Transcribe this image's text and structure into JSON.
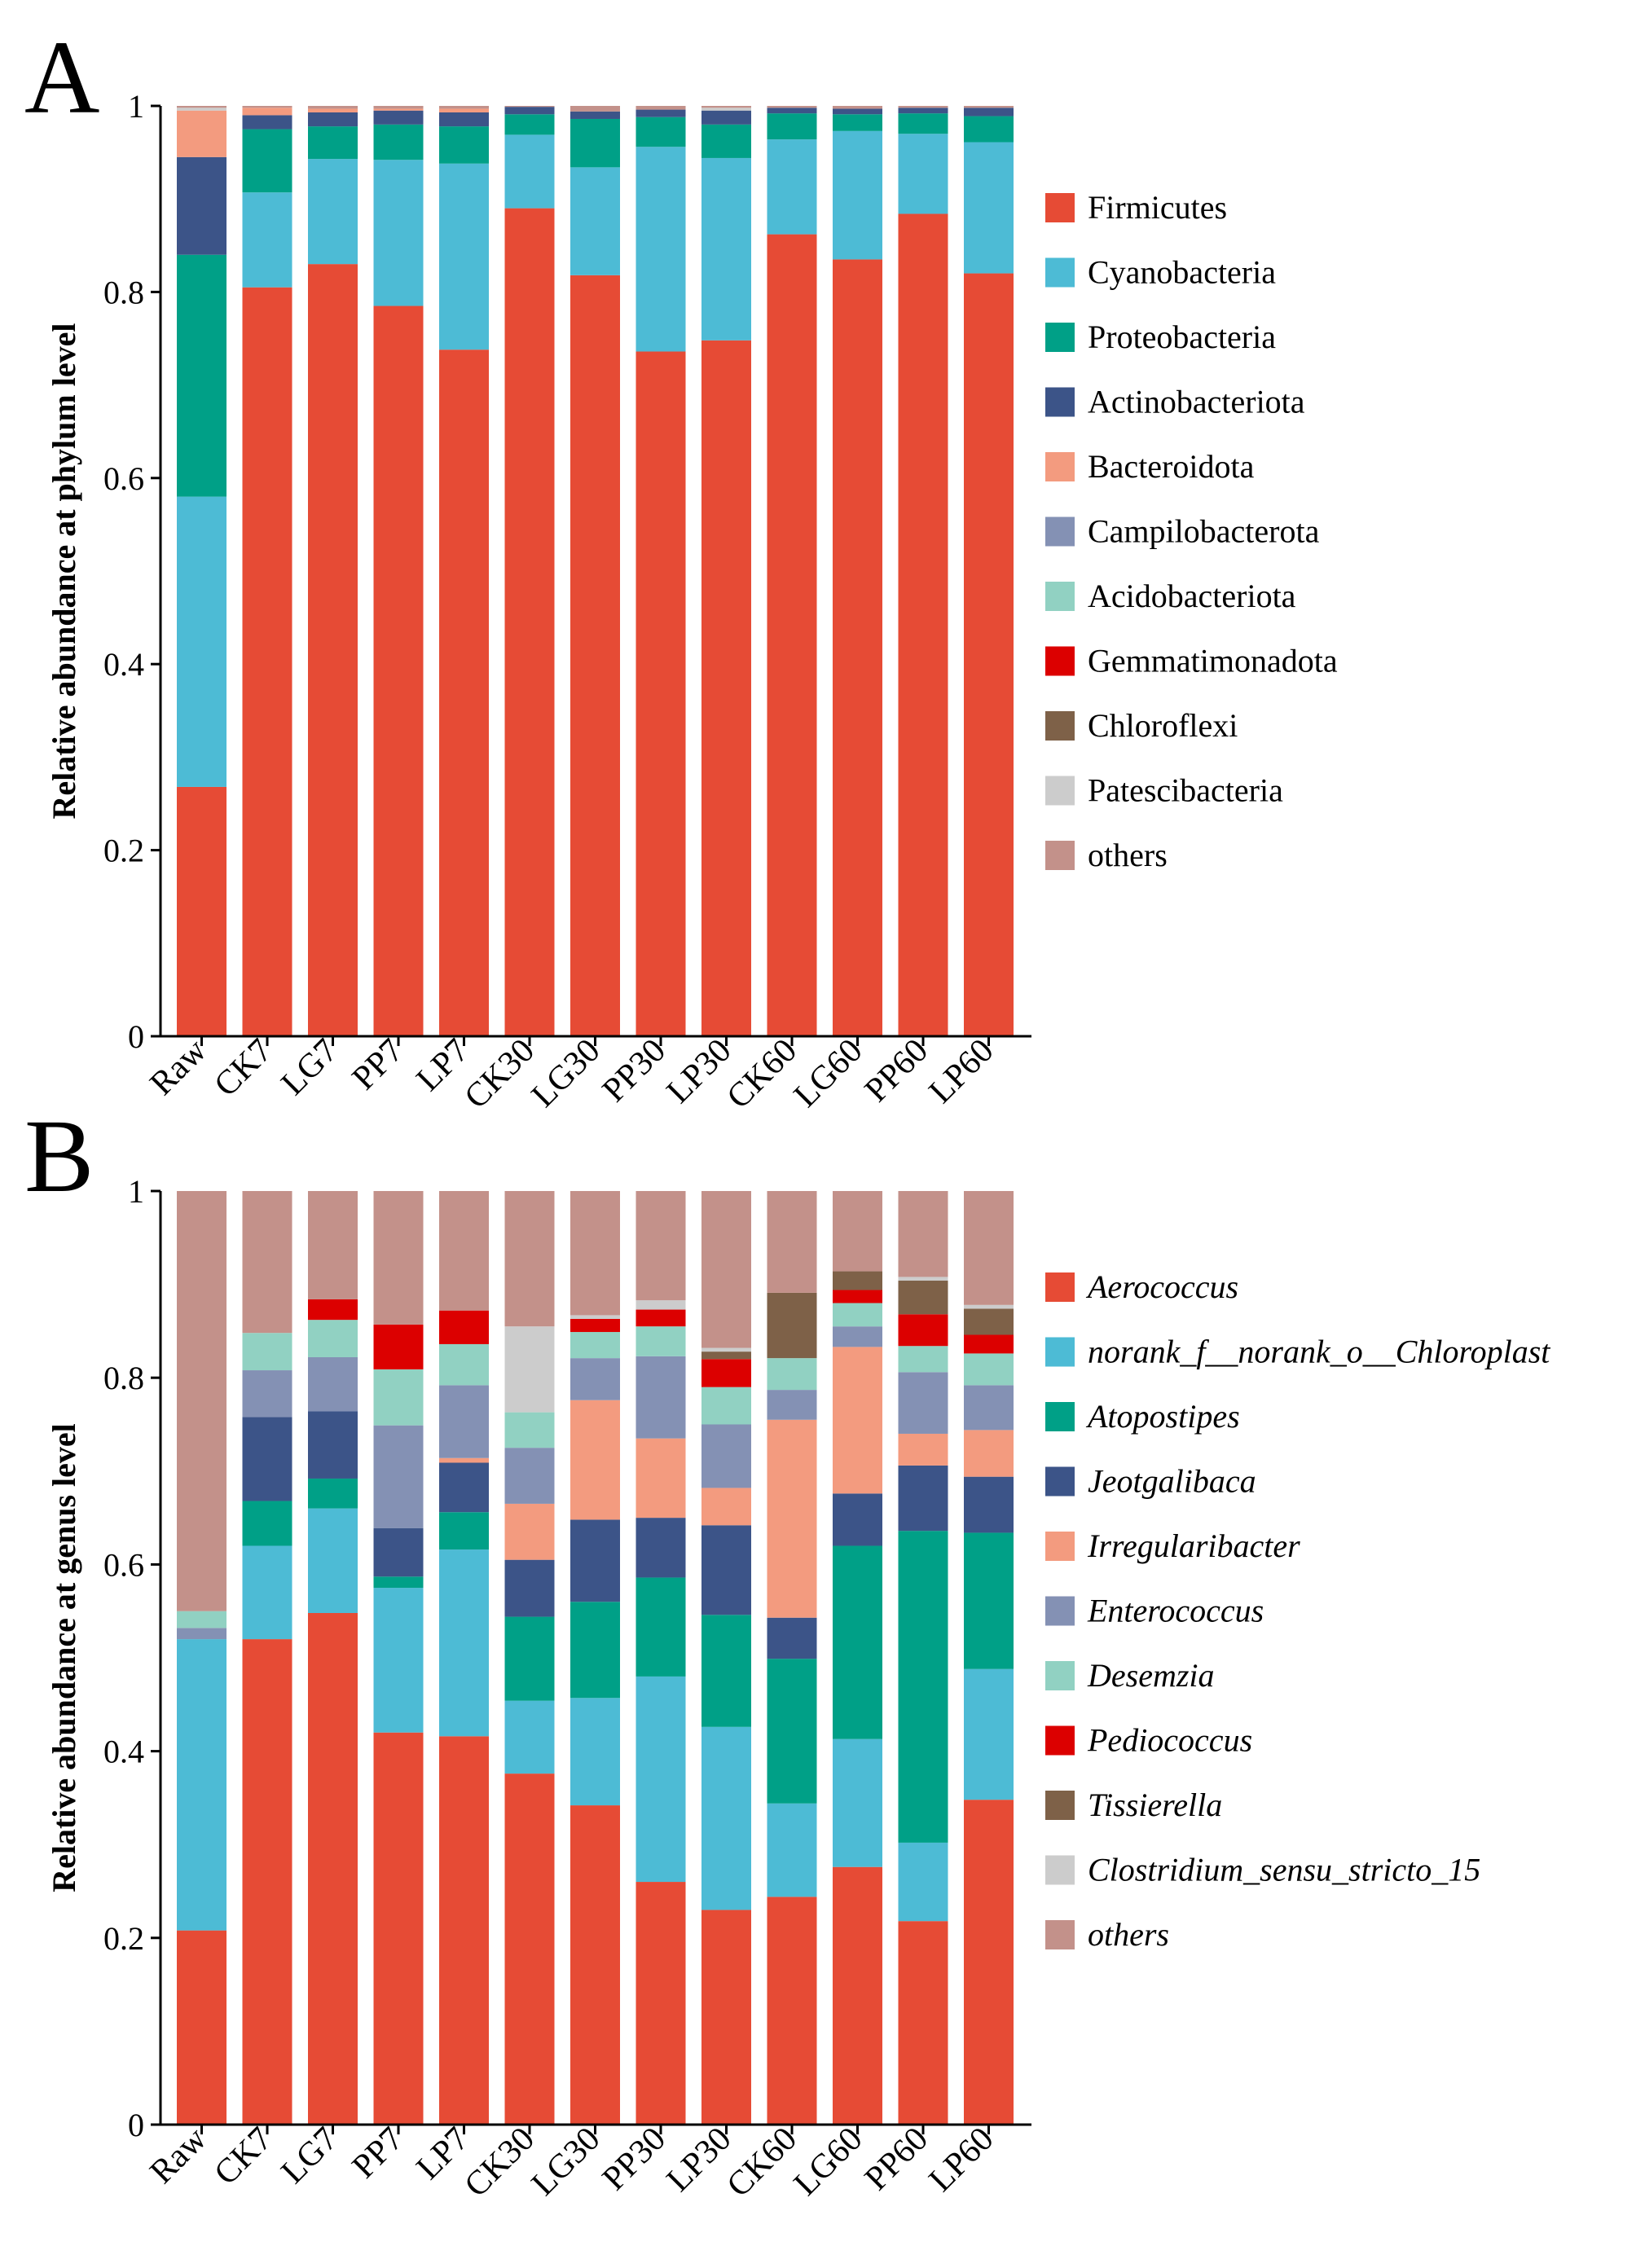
{
  "chart_data": [
    {
      "panel": "A",
      "type": "bar",
      "stacked": true,
      "ylabel": "Relative abundance at phylum level",
      "ylim": [
        0,
        1
      ],
      "yticks": [
        "0",
        "0.2",
        "0.4",
        "0.6",
        "0.8",
        "1"
      ],
      "legend_italic": false,
      "categories": [
        "Raw",
        "CK7",
        "LG7",
        "PP7",
        "LP7",
        "CK30",
        "LG30",
        "PP30",
        "LP30",
        "CK60",
        "LG60",
        "PP60",
        "LP60"
      ],
      "series": [
        {
          "name": "Firmicutes",
          "color": "#e64b35",
          "values": [
            0.268,
            0.805,
            0.83,
            0.785,
            0.738,
            0.89,
            0.818,
            0.736,
            0.748,
            0.862,
            0.835,
            0.884,
            0.82
          ]
        },
        {
          "name": "Cyanobacteria",
          "color": "#4dbbd5",
          "values": [
            0.312,
            0.102,
            0.113,
            0.157,
            0.2,
            0.079,
            0.116,
            0.22,
            0.196,
            0.102,
            0.138,
            0.086,
            0.141
          ]
        },
        {
          "name": "Proteobacteria",
          "color": "#00a087",
          "values": [
            0.26,
            0.068,
            0.035,
            0.038,
            0.04,
            0.022,
            0.052,
            0.032,
            0.036,
            0.028,
            0.018,
            0.022,
            0.028
          ]
        },
        {
          "name": "Actinobacteriota",
          "color": "#3c5488",
          "values": [
            0.105,
            0.015,
            0.015,
            0.015,
            0.015,
            0.008,
            0.008,
            0.008,
            0.015,
            0.006,
            0.006,
            0.006,
            0.009
          ]
        },
        {
          "name": "Bacteroidota",
          "color": "#f39b7f",
          "values": [
            0.05,
            0.008,
            0.004,
            0.002,
            0.004,
            0.0,
            0.0,
            0.0,
            0.0,
            0.0,
            0.0,
            0.0,
            0.0
          ]
        },
        {
          "name": "Campilobacterota",
          "color": "#8491b4",
          "values": [
            0.0,
            0.0,
            0.0,
            0.0,
            0.0,
            0.0,
            0.0,
            0.0,
            0.0,
            0.0,
            0.0,
            0.0,
            0.0
          ]
        },
        {
          "name": "Acidobacteriota",
          "color": "#91d1c2",
          "values": [
            0.0,
            0.0,
            0.0,
            0.0,
            0.0,
            0.0,
            0.0,
            0.0,
            0.0,
            0.0,
            0.0,
            0.0,
            0.0
          ]
        },
        {
          "name": "Gemmatimonadota",
          "color": "#dc0000",
          "values": [
            0.0,
            0.0,
            0.0,
            0.0,
            0.0,
            0.0,
            0.0,
            0.0,
            0.0,
            0.0,
            0.0,
            0.0,
            0.0
          ]
        },
        {
          "name": "Chloroflexi",
          "color": "#7e6148",
          "values": [
            0.0,
            0.0,
            0.0,
            0.0,
            0.0,
            0.0,
            0.0,
            0.0,
            0.0,
            0.0,
            0.0,
            0.0,
            0.0
          ]
        },
        {
          "name": "Patescibacteria",
          "color": "#cccccc",
          "values": [
            0.003,
            0.0,
            0.0,
            0.0,
            0.0,
            0.0,
            0.0,
            0.0,
            0.003,
            0.0,
            0.0,
            0.0,
            0.0
          ]
        },
        {
          "name": "others",
          "color": "#c3918a",
          "values": [
            0.002,
            0.002,
            0.003,
            0.003,
            0.003,
            0.001,
            0.006,
            0.004,
            0.002,
            0.002,
            0.003,
            0.002,
            0.002
          ]
        }
      ]
    },
    {
      "panel": "B",
      "type": "bar",
      "stacked": true,
      "ylabel": "Relative abundance at genus level",
      "ylim": [
        0,
        1
      ],
      "yticks": [
        "0",
        "0.2",
        "0.4",
        "0.6",
        "0.8",
        "1"
      ],
      "legend_italic": true,
      "categories": [
        "Raw",
        "CK7",
        "LG7",
        "PP7",
        "LP7",
        "CK30",
        "LG30",
        "PP30",
        "LP30",
        "CK60",
        "LG60",
        "PP60",
        "LP60"
      ],
      "series": [
        {
          "name": "Aerococcus",
          "color": "#e64b35",
          "values": [
            0.208,
            0.52,
            0.548,
            0.42,
            0.416,
            0.376,
            0.342,
            0.26,
            0.23,
            0.244,
            0.276,
            0.218,
            0.348
          ]
        },
        {
          "name": "norank_f__norank_o__Chloroplast",
          "color": "#4dbbd5",
          "values": [
            0.312,
            0.1,
            0.112,
            0.155,
            0.2,
            0.078,
            0.115,
            0.22,
            0.196,
            0.1,
            0.137,
            0.084,
            0.14
          ]
        },
        {
          "name": "Atopostipes",
          "color": "#00a087",
          "values": [
            0.0,
            0.048,
            0.032,
            0.012,
            0.04,
            0.09,
            0.103,
            0.106,
            0.12,
            0.155,
            0.207,
            0.334,
            0.146
          ]
        },
        {
          "name": "Jeotgalibaca",
          "color": "#3c5488",
          "values": [
            0.0,
            0.09,
            0.072,
            0.052,
            0.053,
            0.061,
            0.088,
            0.064,
            0.096,
            0.044,
            0.056,
            0.07,
            0.06
          ]
        },
        {
          "name": "Irregularibacter",
          "color": "#f39b7f",
          "values": [
            0.0,
            0.0,
            0.0,
            0.0,
            0.005,
            0.06,
            0.128,
            0.085,
            0.04,
            0.212,
            0.157,
            0.034,
            0.05
          ]
        },
        {
          "name": "Enterococcus",
          "color": "#8491b4",
          "values": [
            0.012,
            0.05,
            0.058,
            0.11,
            0.078,
            0.06,
            0.045,
            0.088,
            0.068,
            0.032,
            0.022,
            0.066,
            0.048
          ]
        },
        {
          "name": "Desemzia",
          "color": "#91d1c2",
          "values": [
            0.018,
            0.04,
            0.04,
            0.06,
            0.044,
            0.038,
            0.028,
            0.032,
            0.04,
            0.034,
            0.025,
            0.028,
            0.034
          ]
        },
        {
          "name": "Pediococcus",
          "color": "#dc0000",
          "values": [
            0.0,
            0.0,
            0.022,
            0.048,
            0.036,
            0.0,
            0.014,
            0.018,
            0.03,
            0.0,
            0.014,
            0.034,
            0.02
          ]
        },
        {
          "name": "Tissierella",
          "color": "#7e6148",
          "values": [
            0.0,
            0.0,
            0.0,
            0.0,
            0.0,
            0.0,
            0.0,
            0.0,
            0.008,
            0.07,
            0.02,
            0.036,
            0.028
          ]
        },
        {
          "name": "Clostridium_sensu_stricto_15",
          "color": "#cccccc",
          "values": [
            0.0,
            0.0,
            0.0,
            0.0,
            0.0,
            0.092,
            0.004,
            0.01,
            0.004,
            0.0,
            0.0,
            0.004,
            0.004
          ]
        },
        {
          "name": "others",
          "color": "#c3918a",
          "values": [
            0.45,
            0.152,
            0.116,
            0.143,
            0.128,
            0.145,
            0.133,
            0.117,
            0.168,
            0.109,
            0.086,
            0.092,
            0.122
          ]
        }
      ]
    }
  ]
}
